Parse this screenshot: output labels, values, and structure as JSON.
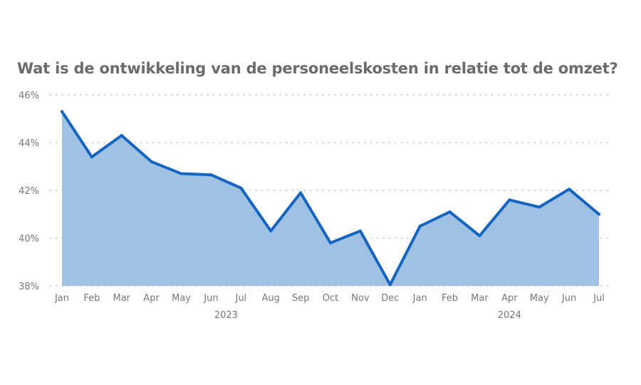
{
  "chart_data": {
    "type": "area",
    "title": "Wat is de ontwikkeling van de personeelskosten in relatie tot de omzet?",
    "xlabel": "",
    "ylabel": "",
    "ylim": [
      38,
      46
    ],
    "y_ticks": [
      "38%",
      "40%",
      "42%",
      "44%",
      "46%"
    ],
    "y_tick_values": [
      38,
      40,
      42,
      44,
      46
    ],
    "grid": "horizontal dotted",
    "categories": [
      "Jan",
      "Feb",
      "Mar",
      "Apr",
      "May",
      "Jun",
      "Jul",
      "Aug",
      "Sep",
      "Oct",
      "Nov",
      "Dec",
      "Jan",
      "Feb",
      "Mar",
      "Apr",
      "May",
      "Jun",
      "Jul"
    ],
    "year_groups": [
      {
        "label": "2023",
        "start": 0,
        "end": 11
      },
      {
        "label": "2024",
        "start": 12,
        "end": 18
      }
    ],
    "series": [
      {
        "values": [
          45.3,
          43.4,
          44.3,
          43.2,
          42.7,
          42.65,
          42.1,
          40.3,
          41.9,
          39.8,
          40.3,
          38.05,
          40.5,
          41.1,
          40.1,
          41.6,
          41.3,
          42.05,
          41.0
        ]
      }
    ],
    "colors": {
      "line": "#1565c0",
      "fill": "#9fc2e4",
      "grid": "#c8c8c8",
      "text": "#777777",
      "title": "#6b6b6b"
    }
  }
}
